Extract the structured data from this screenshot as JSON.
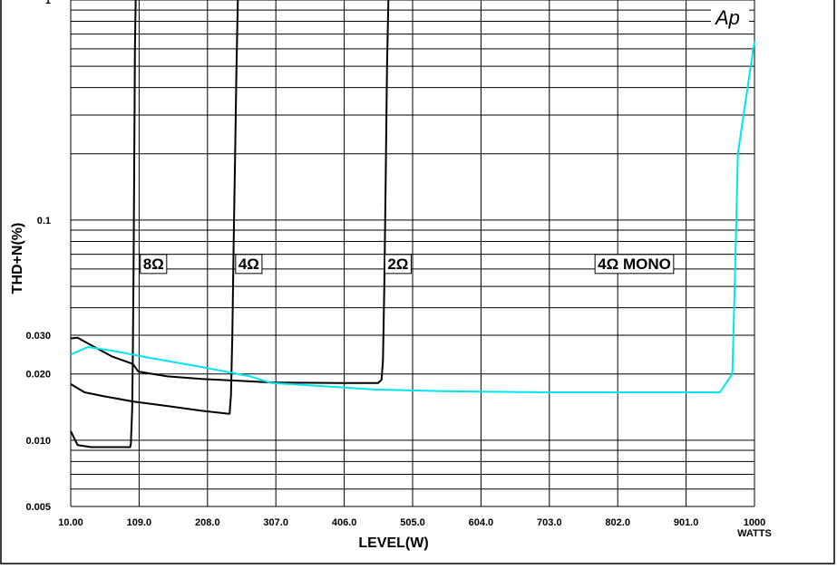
{
  "chart_data": {
    "type": "line",
    "xlabel": "LEVEL(W)",
    "ylabel": "THD+N(%)",
    "x_unit_label": "WATTS",
    "brand_mark": "Ap",
    "y_scale": "log",
    "xlim": [
      10,
      1000
    ],
    "ylim": [
      0.005,
      1
    ],
    "grid": true,
    "x_ticks": [
      {
        "value": 10,
        "label": "10.00"
      },
      {
        "value": 109,
        "label": "109.0"
      },
      {
        "value": 208,
        "label": "208.0"
      },
      {
        "value": 307,
        "label": "307.0"
      },
      {
        "value": 406,
        "label": "406.0"
      },
      {
        "value": 505,
        "label": "505.0"
      },
      {
        "value": 604,
        "label": "604.0"
      },
      {
        "value": 703,
        "label": "703.0"
      },
      {
        "value": 802,
        "label": "802.0"
      },
      {
        "value": 901,
        "label": "901.0"
      },
      {
        "value": 1000,
        "label": "1000"
      }
    ],
    "y_ticks": [
      {
        "value": 1,
        "label": "1"
      },
      {
        "value": 0.1,
        "label": "0.1"
      },
      {
        "value": 0.03,
        "label": "0.030"
      },
      {
        "value": 0.02,
        "label": "0.020"
      },
      {
        "value": 0.01,
        "label": "0.010"
      },
      {
        "value": 0.005,
        "label": "0.005"
      }
    ],
    "series": [
      {
        "name": "8Ω",
        "color": "#000000",
        "label_at": [
          145,
          0.06
        ],
        "points": [
          [
            10,
            0.011
          ],
          [
            20,
            0.0095
          ],
          [
            40,
            0.0093
          ],
          [
            70,
            0.0093
          ],
          [
            96,
            0.0093
          ],
          [
            97,
            0.0096
          ],
          [
            99,
            0.014
          ],
          [
            100,
            0.025
          ],
          [
            101,
            0.06
          ],
          [
            102,
            0.2
          ],
          [
            103,
            0.6
          ],
          [
            104,
            1.0
          ]
        ]
      },
      {
        "name": "4Ω",
        "color": "#000000",
        "label_at": [
          283,
          0.06
        ],
        "points": [
          [
            10,
            0.018
          ],
          [
            30,
            0.0165
          ],
          [
            60,
            0.0158
          ],
          [
            100,
            0.015
          ],
          [
            150,
            0.0143
          ],
          [
            200,
            0.0136
          ],
          [
            238,
            0.0132
          ],
          [
            240,
            0.0132
          ],
          [
            242,
            0.016
          ],
          [
            244,
            0.03
          ],
          [
            246,
            0.08
          ],
          [
            248,
            0.2
          ],
          [
            250,
            0.5
          ],
          [
            252,
            1.0
          ]
        ]
      },
      {
        "name": "2Ω",
        "color": "#000000",
        "label_at": [
          499,
          0.06
        ],
        "points": [
          [
            10,
            0.029
          ],
          [
            20,
            0.0292
          ],
          [
            40,
            0.027
          ],
          [
            70,
            0.024
          ],
          [
            100,
            0.0222
          ],
          [
            108,
            0.0205
          ],
          [
            150,
            0.0195
          ],
          [
            200,
            0.019
          ],
          [
            300,
            0.0183
          ],
          [
            400,
            0.0182
          ],
          [
            455,
            0.0182
          ],
          [
            460,
            0.0188
          ],
          [
            462,
            0.023
          ],
          [
            464,
            0.05
          ],
          [
            466,
            0.15
          ],
          [
            468,
            0.5
          ],
          [
            470,
            1.0
          ]
        ]
      },
      {
        "name": "4Ω MONO",
        "color": "#00e5ee",
        "label_at": [
          879,
          0.06
        ],
        "points": [
          [
            10,
            0.0245
          ],
          [
            35,
            0.0265
          ],
          [
            70,
            0.0255
          ],
          [
            120,
            0.0238
          ],
          [
            200,
            0.0215
          ],
          [
            270,
            0.0195
          ],
          [
            300,
            0.0182
          ],
          [
            350,
            0.0178
          ],
          [
            450,
            0.017
          ],
          [
            550,
            0.0167
          ],
          [
            700,
            0.0165
          ],
          [
            900,
            0.0165
          ],
          [
            950,
            0.0165
          ],
          [
            968,
            0.02
          ],
          [
            972,
            0.06
          ],
          [
            976,
            0.2
          ],
          [
            990,
            0.4
          ],
          [
            1000,
            0.65
          ]
        ]
      }
    ]
  }
}
